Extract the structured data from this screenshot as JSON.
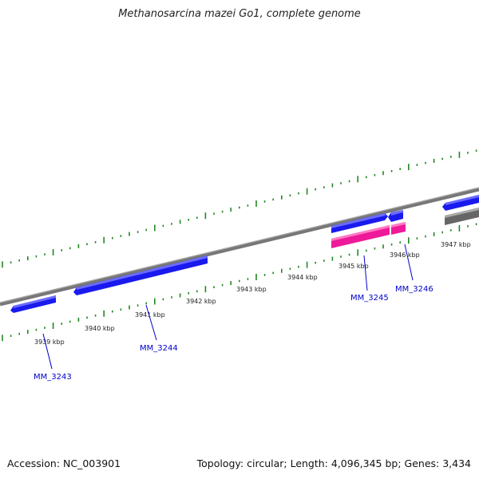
{
  "header": {
    "title": "Methanosarcina mazei Go1, complete genome"
  },
  "footer": {
    "accession": "Accession: NC_003901",
    "summary": "Topology: circular; Length: 4,096,345 bp; Genes: 3,434"
  },
  "ticks": [
    {
      "label": "3939 kbp"
    },
    {
      "label": "3940 kbp"
    },
    {
      "label": "3941 kbp"
    },
    {
      "label": "3942 kbp"
    },
    {
      "label": "3943 kbp"
    },
    {
      "label": "3944 kbp"
    },
    {
      "label": "3945 kbp"
    },
    {
      "label": "3946 kbp"
    },
    {
      "label": "3947 kbp"
    }
  ],
  "genes": [
    {
      "name": "MM_3243"
    },
    {
      "name": "MM_3244"
    },
    {
      "name": "MM_3245"
    },
    {
      "name": "MM_3246"
    }
  ],
  "colors": {
    "gene_forward": "#1a1aee",
    "gene_pink": "#ee1a99",
    "gene_gray": "#666666",
    "backbone": "#777777",
    "tick": "#228822",
    "gene_label": "#0000cc"
  }
}
